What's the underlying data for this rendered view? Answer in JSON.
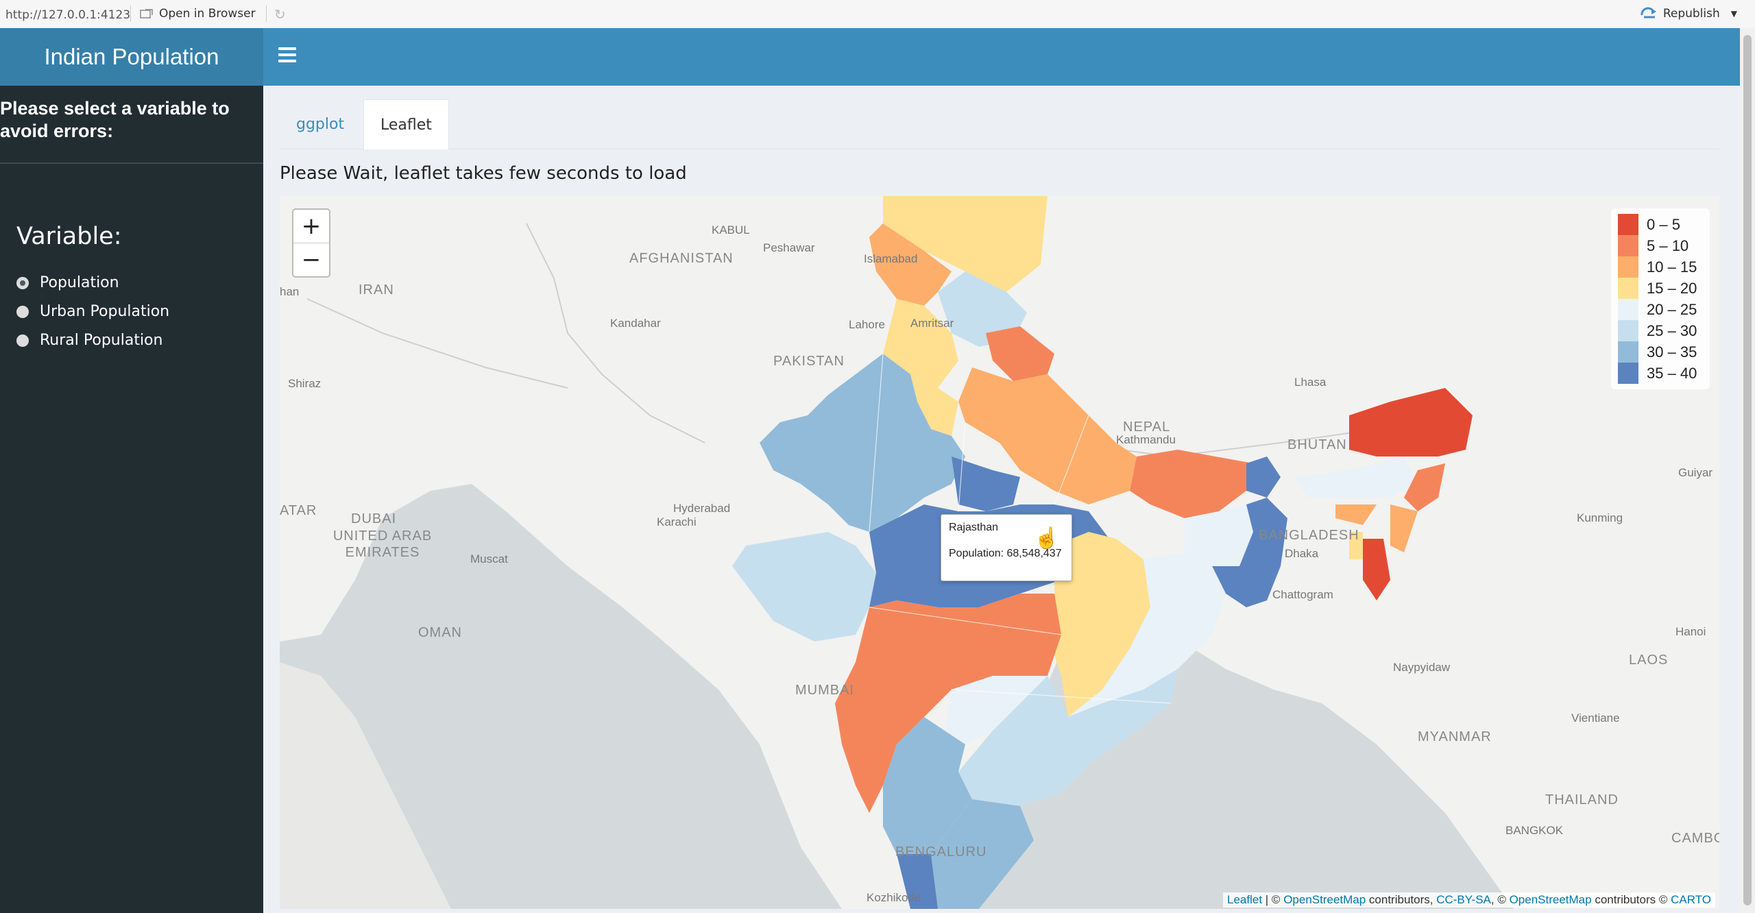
{
  "browser": {
    "url": "http://127.0.0.1:4123",
    "open_in_browser": "Open in Browser",
    "republish": "Republish"
  },
  "app": {
    "title": "Indian Population"
  },
  "sidebar": {
    "note": "Please select a variable to avoid errors:",
    "variable_label": "Variable:",
    "options": [
      "Population",
      "Urban Population",
      "Rural Population"
    ],
    "selected": "Population"
  },
  "tabs": [
    {
      "label": "ggplot",
      "active": false
    },
    {
      "label": "Leaflet",
      "active": true
    }
  ],
  "wait_text": "Please Wait, leaflet takes few seconds to load",
  "map": {
    "zoom_in": "+",
    "zoom_out": "−",
    "legend": [
      {
        "label": "0 – 5",
        "color": "#e34a33"
      },
      {
        "label": "5 – 10",
        "color": "#f4855b"
      },
      {
        "label": "10 – 15",
        "color": "#fdae6b"
      },
      {
        "label": "15 – 20",
        "color": "#fee090"
      },
      {
        "label": "20 – 25",
        "color": "#e8f2f8"
      },
      {
        "label": "25 – 30",
        "color": "#c6dfee"
      },
      {
        "label": "30 – 35",
        "color": "#92bbd9"
      },
      {
        "label": "35 – 40",
        "color": "#5b83c0"
      }
    ],
    "tooltip": {
      "name": "Rajasthan",
      "population": "Population: 68,548,437"
    },
    "attribution": {
      "leaflet": "Leaflet",
      "sep1": " | © ",
      "osm1": "OpenStreetMap",
      "mid1": " contributors, ",
      "cc": "CC-BY-SA",
      "mid2": ", © ",
      "osm2": "OpenStreetMap",
      "mid3": " contributors © ",
      "carto": "CARTO"
    },
    "labels": {
      "afghanistan": "AFGHANISTAN",
      "kabul": "KABUL",
      "peshawar": "Peshawar",
      "islamabad": "Islamabad",
      "iran": "IRAN",
      "kandahar": "Kandahar",
      "lahore": "Lahore",
      "amritsar": "Amritsar",
      "pakistan": "PAKISTAN",
      "shiraz": "Shiraz",
      "nepal": "NEPAL",
      "kathmandu": "Kathmandu",
      "lhasa": "Lhasa",
      "bhutan": "BHUTAN",
      "guiyang": "Guiyar",
      "hyderabad_pk": "Hyderabad",
      "karachi": "Karachi",
      "qatar": "ATAR",
      "dubai": "DUBAI",
      "uae": "UNITED ARAB EMIRATES",
      "muscat": "Muscat",
      "oman": "OMAN",
      "bangladesh": "BANGLADESH",
      "dhaka": "Dhaka",
      "chattogram": "Chattogram",
      "kunming": "Kunming",
      "mumbai": "MUMBAI",
      "naypyidaw": "Naypyidaw",
      "hanoi": "Hanoi",
      "laos": "LAOS",
      "myanmar": "MYANMAR",
      "vientiane": "Vientiane",
      "thailand": "THAILAND",
      "bangkok": "BANGKOK",
      "cambodia": "CAMBODI",
      "bengaluru": "BENGALURU",
      "kozhikode": "Kozhikode",
      "han": "han"
    }
  }
}
